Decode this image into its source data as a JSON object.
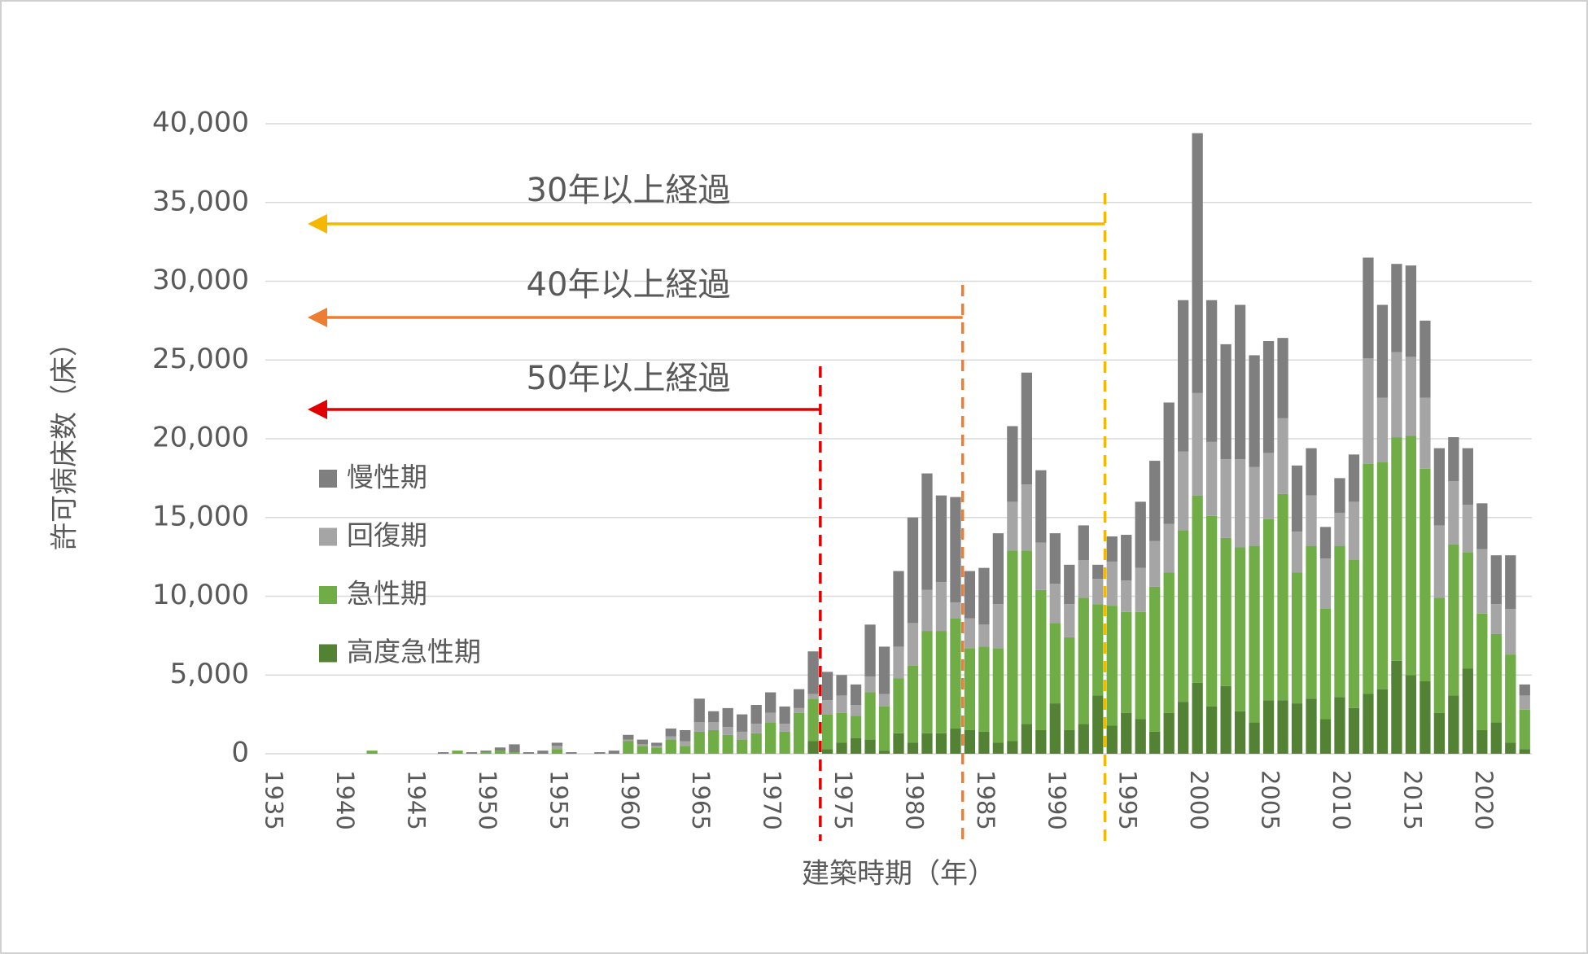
{
  "chart_data": {
    "type": "stacked_bar",
    "x_label": "建築時期（年）",
    "y_label": "許可病床数（床）",
    "x": [
      1935,
      1936,
      1937,
      1938,
      1939,
      1940,
      1941,
      1942,
      1943,
      1944,
      1945,
      1946,
      1947,
      1948,
      1949,
      1950,
      1951,
      1952,
      1953,
      1954,
      1955,
      1956,
      1957,
      1958,
      1959,
      1960,
      1961,
      1962,
      1963,
      1964,
      1965,
      1966,
      1967,
      1968,
      1969,
      1970,
      1971,
      1972,
      1973,
      1974,
      1975,
      1976,
      1977,
      1978,
      1979,
      1980,
      1981,
      1982,
      1983,
      1984,
      1985,
      1986,
      1987,
      1988,
      1989,
      1990,
      1991,
      1992,
      1993,
      1994,
      1995,
      1996,
      1997,
      1998,
      1999,
      2000,
      2001,
      2002,
      2003,
      2004,
      2005,
      2006,
      2007,
      2008,
      2009,
      2010,
      2011,
      2012,
      2013,
      2014,
      2015,
      2016,
      2017,
      2018,
      2019,
      2020,
      2021,
      2022,
      2023
    ],
    "xlim": [
      1934.5,
      2023.5
    ],
    "xticks": [
      1935,
      1940,
      1945,
      1950,
      1955,
      1960,
      1965,
      1970,
      1975,
      1980,
      1985,
      1990,
      1995,
      2000,
      2005,
      2010,
      2015,
      2020
    ],
    "ylim": [
      0,
      40000
    ],
    "yticks": [
      0,
      {
        "value": 5000,
        "label": "5,000"
      },
      {
        "value": 10000,
        "label": "10,000"
      },
      {
        "value": 15000,
        "label": "15,000"
      },
      {
        "value": 20000,
        "label": "20,000"
      },
      {
        "value": 25000,
        "label": "25,000"
      },
      {
        "value": 30000,
        "label": "30,000"
      },
      {
        "value": 35000,
        "label": "35,000"
      },
      {
        "value": 40000,
        "label": "40,000"
      }
    ],
    "grid": true,
    "series": [
      {
        "name": "高度急性期",
        "color": "#548235",
        "values": [
          0,
          0,
          0,
          0,
          0,
          0,
          0,
          0,
          0,
          0,
          0,
          0,
          0,
          0,
          0,
          0,
          0,
          0,
          0,
          0,
          0,
          0,
          0,
          0,
          0,
          0,
          0,
          0,
          0,
          0,
          0,
          0,
          0,
          0,
          0,
          0,
          0,
          0,
          800,
          300,
          700,
          1000,
          900,
          200,
          1300,
          700,
          1300,
          1300,
          1600,
          1500,
          1400,
          700,
          800,
          1900,
          1500,
          3200,
          1500,
          1900,
          3700,
          1800,
          2600,
          2200,
          1400,
          2600,
          3300,
          4500,
          3000,
          4300,
          2700,
          2000,
          3400,
          3400,
          3200,
          3500,
          2200,
          3600,
          2900,
          3800,
          4100,
          5900,
          5000,
          4600,
          2600,
          3700,
          5400,
          1500,
          2000,
          700,
          300
        ]
      },
      {
        "name": "急性期",
        "color": "#70ad47",
        "values": [
          0,
          0,
          0,
          0,
          0,
          0,
          0,
          200,
          0,
          0,
          0,
          0,
          0,
          200,
          0,
          100,
          200,
          100,
          0,
          0,
          300,
          0,
          0,
          0,
          0,
          800,
          500,
          400,
          900,
          500,
          1400,
          1500,
          1200,
          900,
          1300,
          2000,
          1400,
          2600,
          2700,
          2200,
          1900,
          1400,
          3000,
          2800,
          3500,
          4900,
          6500,
          6500,
          7000,
          5200,
          5400,
          6000,
          12100,
          11000,
          8900,
          5100,
          5900,
          8000,
          5800,
          7600,
          6400,
          6800,
          9200,
          8900,
          10900,
          11900,
          12100,
          9400,
          10400,
          11200,
          11500,
          13100,
          8300,
          9700,
          7000,
          9600,
          9400,
          14600,
          14400,
          14200,
          15200,
          13500,
          7300,
          9600,
          7400,
          7400,
          5600,
          5600,
          2500
        ]
      },
      {
        "name": "回復期",
        "color": "#a5a5a5",
        "values": [
          0,
          0,
          0,
          0,
          0,
          0,
          0,
          0,
          0,
          0,
          0,
          0,
          0,
          0,
          0,
          0,
          0,
          0,
          0,
          0,
          200,
          0,
          0,
          0,
          0,
          100,
          100,
          100,
          200,
          300,
          600,
          500,
          500,
          500,
          600,
          600,
          500,
          300,
          300,
          900,
          1100,
          700,
          1000,
          800,
          2000,
          2700,
          2600,
          3100,
          1000,
          1900,
          1400,
          2800,
          3100,
          4200,
          3000,
          2500,
          2100,
          2400,
          1600,
          2800,
          2000,
          2800,
          2900,
          3100,
          5000,
          6500,
          4700,
          5000,
          5600,
          5000,
          4200,
          4800,
          2600,
          3200,
          3200,
          2100,
          3700,
          6700,
          4100,
          5400,
          5000,
          4500,
          4600,
          4000,
          3000,
          4100,
          1900,
          2900,
          900
        ]
      },
      {
        "name": "慢性期",
        "color": "#7f7f7f",
        "values": [
          0,
          0,
          0,
          0,
          0,
          0,
          0,
          0,
          0,
          0,
          0,
          0,
          100,
          0,
          100,
          100,
          200,
          500,
          100,
          200,
          200,
          100,
          0,
          100,
          200,
          300,
          300,
          200,
          500,
          700,
          1500,
          700,
          1200,
          1100,
          1200,
          1300,
          1100,
          1200,
          2700,
          1800,
          1300,
          1300,
          3300,
          3000,
          4800,
          6700,
          7400,
          5500,
          6700,
          3000,
          3600,
          4500,
          4800,
          7100,
          4600,
          3200,
          2500,
          2200,
          900,
          1600,
          2900,
          4200,
          5100,
          7700,
          9600,
          16500,
          9000,
          7300,
          9800,
          7100,
          7100,
          5100,
          4200,
          3000,
          2000,
          2200,
          3000,
          6400,
          5900,
          5600,
          5800,
          4900,
          4900,
          2800,
          3600,
          2900,
          3100,
          3400,
          700
        ]
      }
    ],
    "annotations": [
      {
        "text": "30年以上経過",
        "x": 1993.5,
        "color": "#f5b800"
      },
      {
        "text": "40年以上経過",
        "x": 1983.5,
        "color": "#ed7d31"
      },
      {
        "text": "50年以上経過",
        "x": 1973.5,
        "color": "#e00000"
      }
    ]
  }
}
